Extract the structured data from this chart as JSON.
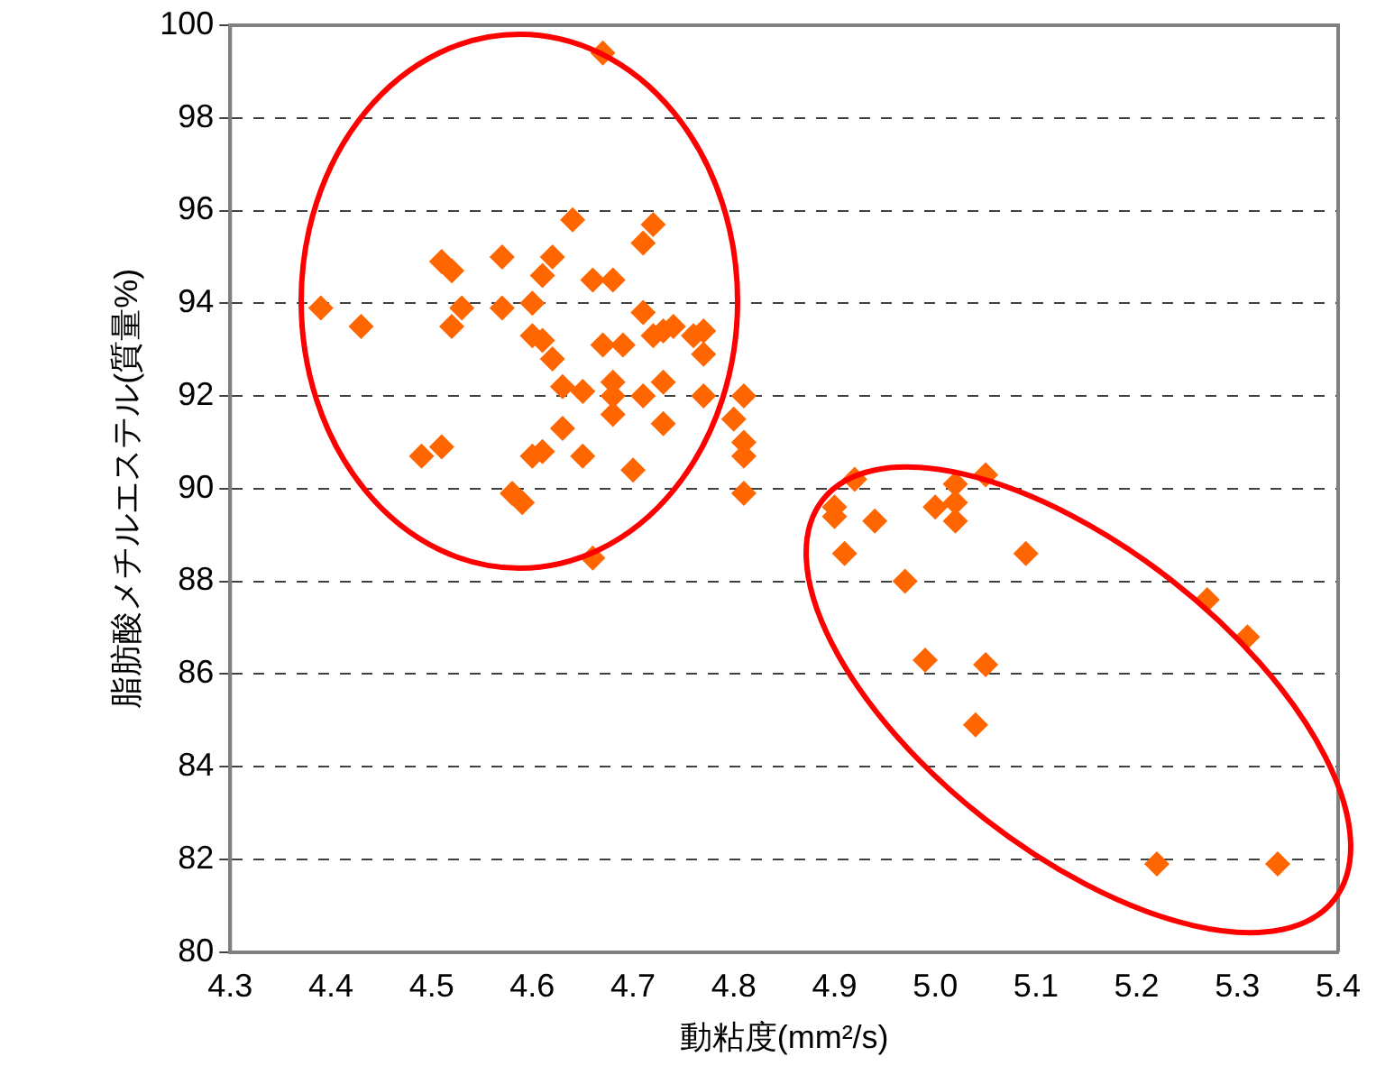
{
  "chart_data": {
    "type": "scatter",
    "xlabel": "動粘度(mm²/s)",
    "ylabel": "脂肪酸メチルエステル(質量%)",
    "xlim": [
      4.3,
      5.4
    ],
    "xticks": [
      4.3,
      4.4,
      4.5,
      4.6,
      4.7,
      4.8,
      4.9,
      {
        "value": 5,
        "label": "5.0"
      },
      5.1,
      5.2,
      5.3,
      5.4
    ],
    "ylim": [
      80,
      100
    ],
    "yticks": [
      80,
      82,
      84,
      86,
      88,
      90,
      92,
      94,
      96,
      98,
      100
    ],
    "grid": "y",
    "legend": false,
    "marker": "diamond",
    "series": [
      {
        "color": "#ff6600",
        "x": [
          4.67,
          4.39,
          4.43,
          4.49,
          4.51,
          4.51,
          4.52,
          4.52,
          4.53,
          4.57,
          4.57,
          4.58,
          4.59,
          4.6,
          4.6,
          4.6,
          4.61,
          4.61,
          4.61,
          4.62,
          4.62,
          4.63,
          4.63,
          4.64,
          4.65,
          4.65,
          4.66,
          4.66,
          4.67,
          4.68,
          4.68,
          4.68,
          4.68,
          4.69,
          4.7,
          4.71,
          4.71,
          4.72,
          4.71,
          4.72,
          4.73,
          4.73,
          4.73,
          4.74,
          4.76,
          4.77,
          4.77,
          4.77,
          4.8,
          4.81,
          4.81,
          4.81,
          4.81,
          4.92,
          4.9,
          4.9,
          4.94,
          4.91,
          4.97,
          5.0,
          5.02,
          5.02,
          5.02,
          5.05,
          5.09,
          4.99,
          5.05,
          5.04,
          5.27,
          5.31,
          5.22,
          5.34
        ],
        "values": [
          99.4,
          93.9,
          93.5,
          90.7,
          90.9,
          94.9,
          94.7,
          93.5,
          93.9,
          95.0,
          93.9,
          89.9,
          89.7,
          94.0,
          93.3,
          90.7,
          90.8,
          93.2,
          94.6,
          95.0,
          92.8,
          92.2,
          91.3,
          95.8,
          92.1,
          90.7,
          94.5,
          88.5,
          93.1,
          94.5,
          92.3,
          91.6,
          92.0,
          93.1,
          90.4,
          93.8,
          95.3,
          95.7,
          92.0,
          93.3,
          93.4,
          91.4,
          92.3,
          93.5,
          93.3,
          93.4,
          92.9,
          92.0,
          91.5,
          90.7,
          92.0,
          91.0,
          89.9,
          90.2,
          89.6,
          89.4,
          89.3,
          88.6,
          88.0,
          89.6,
          90.1,
          89.7,
          89.3,
          90.3,
          88.6,
          86.3,
          86.2,
          84.9,
          87.6,
          86.8,
          81.9,
          81.9
        ]
      }
    ]
  }
}
